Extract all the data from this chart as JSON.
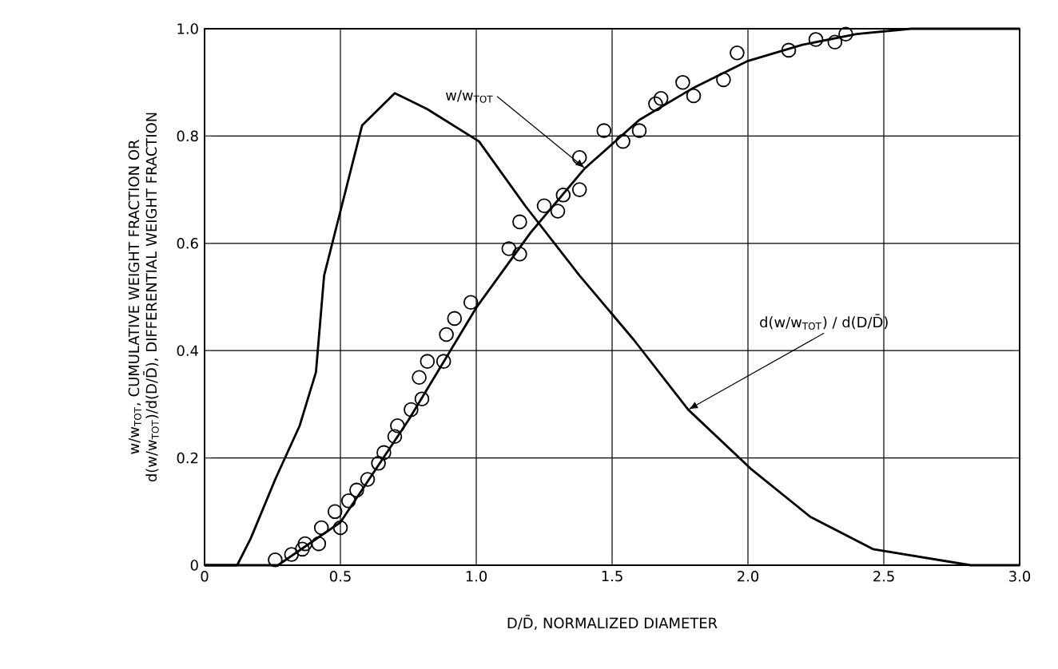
{
  "chart_data": {
    "type": "line",
    "xlabel": "D/D̄, NORMALIZED DIAMETER",
    "ylabel": "w/w$_{TOT}$, CUMULATIVE WEIGHT FRACTION OR d(w/w$_{TOT}$)/d(D/D̄), DIFFERENTIAL WEIGHT FRACTION",
    "xlim": [
      0,
      3.0
    ],
    "ylim": [
      0,
      1.0
    ],
    "xticks": [
      0,
      0.5,
      {
        "value": 1,
        "label": "1.0"
      },
      1.5,
      {
        "value": 2,
        "label": "2.0"
      },
      2.5,
      {
        "value": 3,
        "label": "3.0"
      }
    ],
    "yticks": [
      0,
      0.2,
      0.4,
      0.6,
      0.8,
      {
        "value": 1,
        "label": "1.0"
      }
    ],
    "grid": true,
    "annotations": [
      {
        "text": "w/w$_{TOT}$",
        "x": 1.4,
        "y": 0.74
      },
      {
        "text": "d(w/w$_{TOT}$) / d(D/D̄)",
        "x": 1.78,
        "y": 0.29
      }
    ],
    "series": [
      {
        "color": "#000000",
        "marker": "none",
        "x": [
          0,
          0.12,
          0.17,
          0.26,
          0.35,
          0.41,
          0.44,
          0.5,
          0.58,
          0.7,
          0.82,
          1.01,
          1.18,
          1.38,
          1.58,
          1.78,
          2.01,
          2.23,
          2.46,
          2.82,
          3.0
        ],
        "values": [
          0,
          0,
          0.05,
          0.16,
          0.26,
          0.36,
          0.54,
          0.66,
          0.82,
          0.88,
          0.85,
          0.79,
          0.67,
          0.54,
          0.42,
          0.29,
          0.18,
          0.09,
          0.03,
          0,
          0
        ]
      },
      {
        "color": "#000000",
        "marker": "none",
        "x": [
          0,
          0.27,
          0.5,
          0.75,
          1.0,
          1.2,
          1.4,
          1.6,
          1.8,
          2.0,
          2.2,
          2.4,
          2.6,
          3.0
        ],
        "values": [
          0,
          0,
          0.08,
          0.27,
          0.48,
          0.62,
          0.74,
          0.83,
          0.89,
          0.94,
          0.97,
          0.99,
          1.0,
          1.0
        ]
      },
      {
        "type": "scatter",
        "color": "#000000",
        "marker": "circle",
        "x": [
          0.26,
          0.32,
          0.36,
          0.37,
          0.42,
          0.43,
          0.48,
          0.5,
          0.53,
          0.56,
          0.6,
          0.64,
          0.66,
          0.7,
          0.71,
          0.76,
          0.8,
          0.79,
          0.82,
          0.88,
          0.89,
          0.92,
          0.98,
          1.12,
          1.16,
          1.16,
          1.25,
          1.3,
          1.32,
          1.38,
          1.38,
          1.47,
          1.54,
          1.6,
          1.66,
          1.68,
          1.76,
          1.8,
          1.91,
          1.96,
          2.15,
          2.25,
          2.32,
          2.36
        ],
        "values": [
          0.01,
          0.02,
          0.03,
          0.04,
          0.04,
          0.07,
          0.1,
          0.07,
          0.12,
          0.14,
          0.16,
          0.19,
          0.21,
          0.24,
          0.26,
          0.29,
          0.31,
          0.35,
          0.38,
          0.38,
          0.43,
          0.46,
          0.49,
          0.59,
          0.58,
          0.64,
          0.67,
          0.66,
          0.69,
          0.7,
          0.76,
          0.81,
          0.79,
          0.81,
          0.86,
          0.87,
          0.9,
          0.875,
          0.905,
          0.955,
          0.96,
          0.98,
          0.975,
          0.99
        ]
      }
    ]
  }
}
